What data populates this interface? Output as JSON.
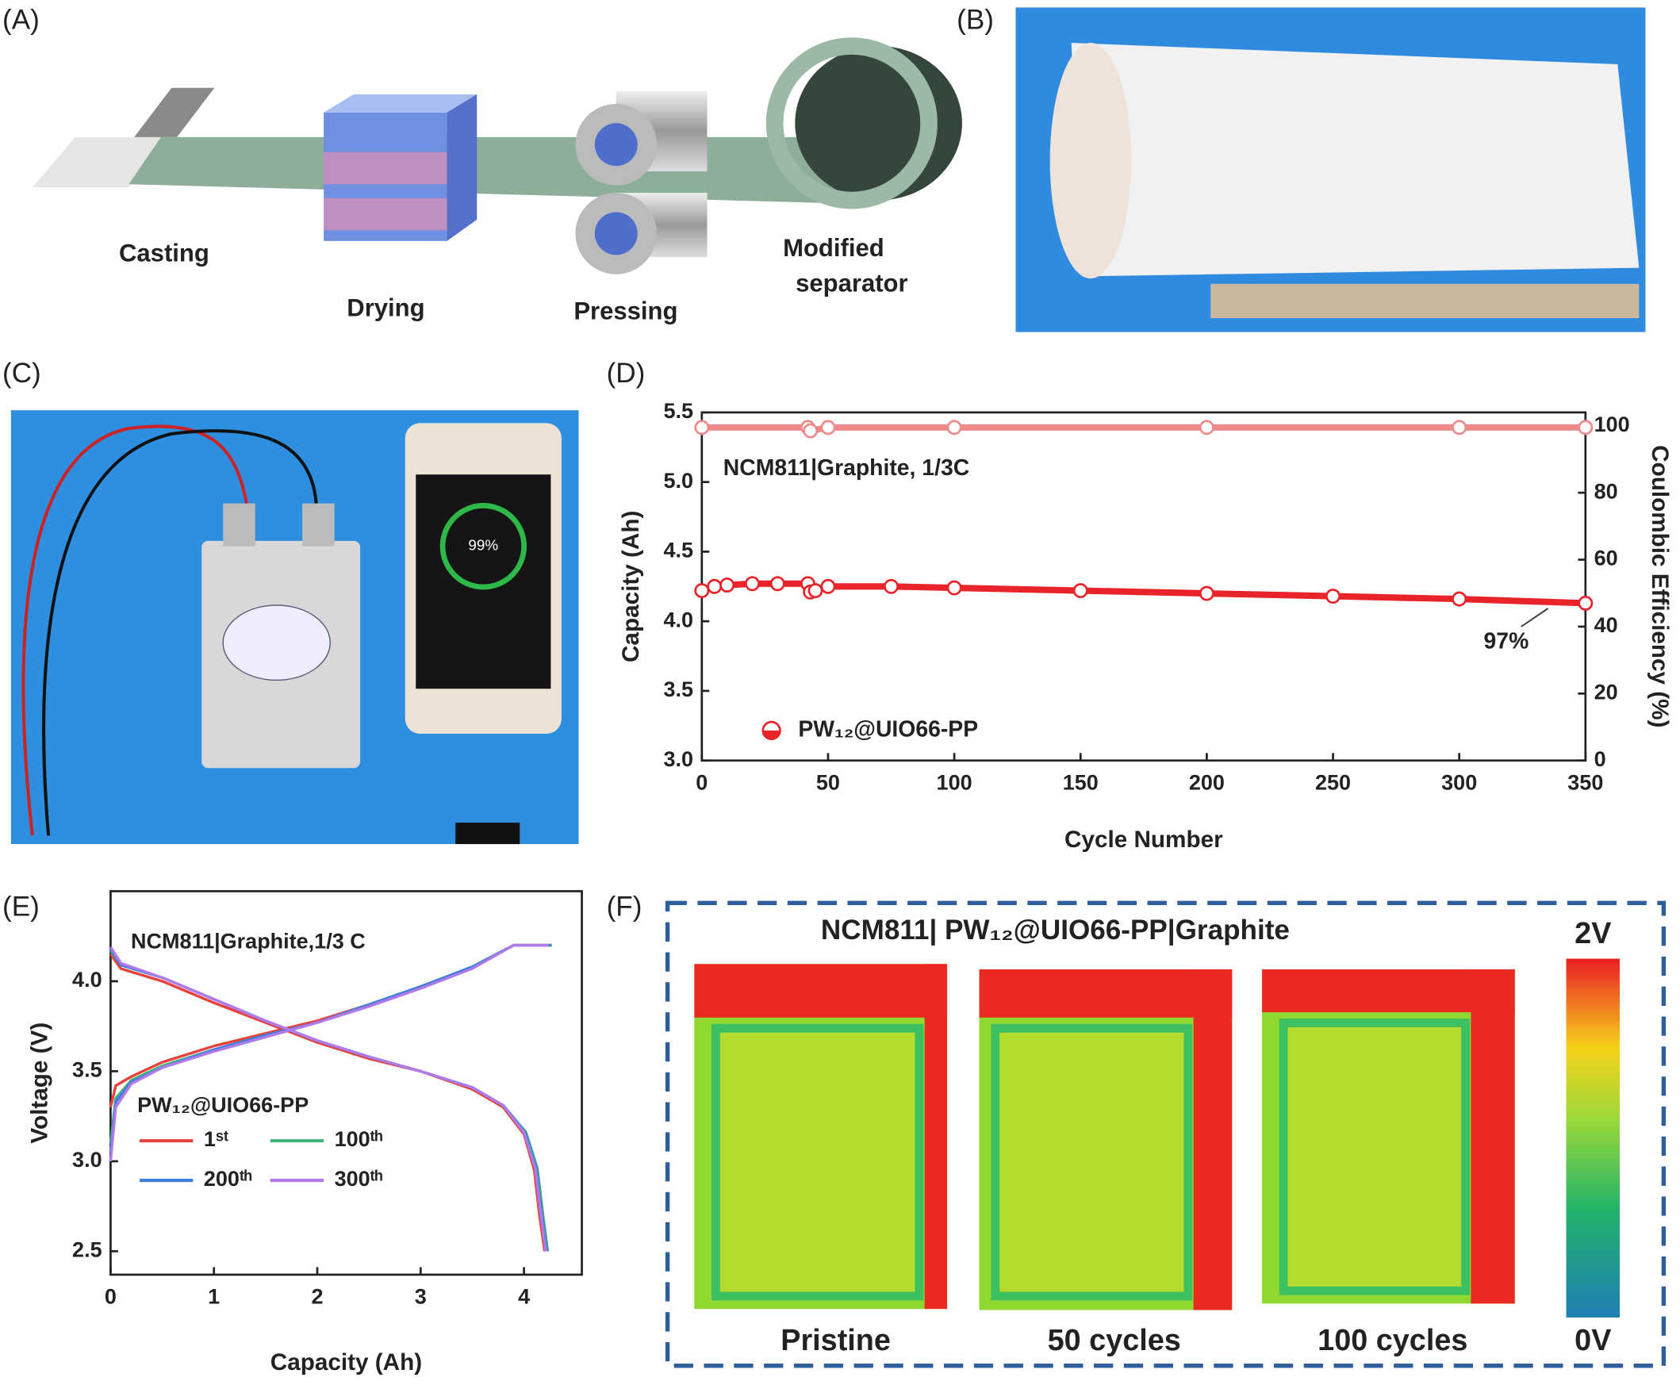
{
  "panels": {
    "a": {
      "label": "(A)",
      "steps": [
        "Casting",
        "Drying",
        "Pressing"
      ],
      "last_step": [
        "Modified",
        "separator"
      ]
    },
    "b": {
      "label": "(B)"
    },
    "c": {
      "label": "(C)",
      "screen_text": "99%"
    },
    "d": {
      "label": "(D)"
    },
    "e": {
      "label": "(E)"
    },
    "f": {
      "label": "(F)",
      "title": "NCM811| PW₁₂@UIO66-PP|Graphite",
      "images": [
        "Pristine",
        "50 cycles",
        "100 cycles"
      ],
      "scale_max": "2V",
      "scale_min": "0V"
    }
  },
  "chart_data": [
    {
      "type": "line",
      "inset_text": "NCM811|Graphite, 1/3C",
      "annotation": "97%",
      "x_label": "Cycle Number",
      "y_label": "Capacity (Ah)",
      "y2_label": "Coulombic Efficiency (%)",
      "xlim": [
        0,
        350
      ],
      "xticks": [
        0,
        50,
        100,
        150,
        200,
        250,
        300,
        350
      ],
      "ylim": [
        3,
        5.5
      ],
      "yticks": [
        {
          "value": 3,
          "label": "3.0"
        },
        3.5,
        {
          "value": 4,
          "label": "4.0"
        },
        4.5,
        {
          "value": 5,
          "label": "5.0"
        },
        5.5
      ],
      "y2lim": [
        0,
        104
      ],
      "y2ticks": [
        0,
        20,
        40,
        60,
        80,
        100
      ],
      "series": [
        {
          "name": "PW₁₂@UIO66-PP",
          "color": "#e8242a",
          "x": [
            0,
            5,
            10,
            20,
            30,
            42,
            43,
            45,
            50,
            75,
            100,
            150,
            200,
            250,
            300,
            350
          ],
          "values": [
            4.22,
            4.25,
            4.26,
            4.27,
            4.27,
            4.27,
            4.21,
            4.22,
            4.25,
            4.25,
            4.24,
            4.22,
            4.2,
            4.18,
            4.16,
            4.13
          ]
        },
        {
          "color": "#f08a8a",
          "axis": "y2",
          "x": [
            0,
            42,
            43,
            50,
            100,
            200,
            300,
            350
          ],
          "values": [
            99.5,
            99.5,
            98.5,
            99.5,
            99.5,
            99.5,
            99.5,
            99.5
          ]
        }
      ]
    },
    {
      "type": "line",
      "inset_text": "NCM811|Graphite,1/3 C",
      "legend_title": "PW₁₂@UIO66-PP",
      "x_label": "Capacity (Ah)",
      "y_label": "Voltage (V)",
      "xlim": [
        0,
        4.56
      ],
      "xticks": [
        0,
        1,
        2,
        3,
        4
      ],
      "ylim": [
        2.37,
        4.5
      ],
      "yticks": [
        2.5,
        {
          "value": 3,
          "label": "3.0"
        },
        3.5,
        {
          "value": 4,
          "label": "4.0"
        }
      ],
      "series": [
        {
          "name": "1ˢᵗ",
          "color": "#e8413c",
          "x": [
            0,
            0.05,
            0.2,
            0.5,
            1,
            1.5,
            2,
            2.5,
            3,
            3.5,
            3.9,
            4.25,
            null,
            0,
            0.1,
            0.5,
            1,
            1.5,
            2,
            2.5,
            3,
            3.5,
            3.8,
            4.0,
            4.1,
            4.15,
            4.2
          ],
          "values": [
            3.3,
            3.42,
            3.47,
            3.55,
            3.64,
            3.71,
            3.78,
            3.87,
            3.97,
            4.08,
            4.2,
            4.2,
            null,
            4.15,
            4.07,
            4.0,
            3.88,
            3.77,
            3.66,
            3.57,
            3.5,
            3.4,
            3.3,
            3.15,
            2.95,
            2.7,
            2.5
          ]
        },
        {
          "name": "100ᵗʰ",
          "color": "#3fb57a",
          "x": [
            0,
            0.05,
            0.2,
            0.5,
            1,
            1.5,
            2,
            2.5,
            3,
            3.5,
            3.9,
            4.27,
            null,
            0,
            0.1,
            0.5,
            1,
            1.5,
            2,
            2.5,
            3,
            3.5,
            3.8,
            4.02,
            4.13,
            4.18,
            4.23
          ],
          "values": [
            3.1,
            3.35,
            3.45,
            3.53,
            3.62,
            3.7,
            3.77,
            3.87,
            3.97,
            4.08,
            4.2,
            4.2,
            null,
            4.17,
            4.09,
            4.02,
            3.9,
            3.78,
            3.67,
            3.58,
            3.5,
            3.41,
            3.31,
            3.16,
            2.96,
            2.72,
            2.5
          ]
        },
        {
          "name": "200ᵗʰ",
          "color": "#3d7fe0",
          "x": [
            0,
            0.05,
            0.2,
            0.5,
            1,
            1.5,
            2,
            2.5,
            3,
            3.5,
            3.9,
            4.26,
            null,
            0,
            0.1,
            0.5,
            1,
            1.5,
            2,
            2.5,
            3,
            3.5,
            3.8,
            4.01,
            4.12,
            4.17,
            4.22
          ],
          "values": [
            3.05,
            3.33,
            3.44,
            3.52,
            3.62,
            3.7,
            3.77,
            3.87,
            3.97,
            4.08,
            4.2,
            4.2,
            null,
            4.18,
            4.09,
            4.02,
            3.9,
            3.78,
            3.67,
            3.58,
            3.5,
            3.41,
            3.31,
            3.16,
            2.96,
            2.72,
            2.5
          ]
        },
        {
          "name": "300ᵗʰ",
          "color": "#b07be8",
          "x": [
            0,
            0.05,
            0.2,
            0.5,
            1,
            1.5,
            2,
            2.5,
            3,
            3.5,
            3.9,
            4.24,
            null,
            0,
            0.1,
            0.5,
            1,
            1.5,
            2,
            2.5,
            3,
            3.5,
            3.8,
            4.0,
            4.11,
            4.16,
            4.21
          ],
          "values": [
            3.0,
            3.3,
            3.43,
            3.52,
            3.61,
            3.69,
            3.77,
            3.86,
            3.96,
            4.07,
            4.2,
            4.2,
            null,
            4.19,
            4.1,
            4.02,
            3.9,
            3.78,
            3.67,
            3.58,
            3.5,
            3.41,
            3.31,
            3.16,
            2.96,
            2.72,
            2.5
          ]
        }
      ]
    }
  ]
}
